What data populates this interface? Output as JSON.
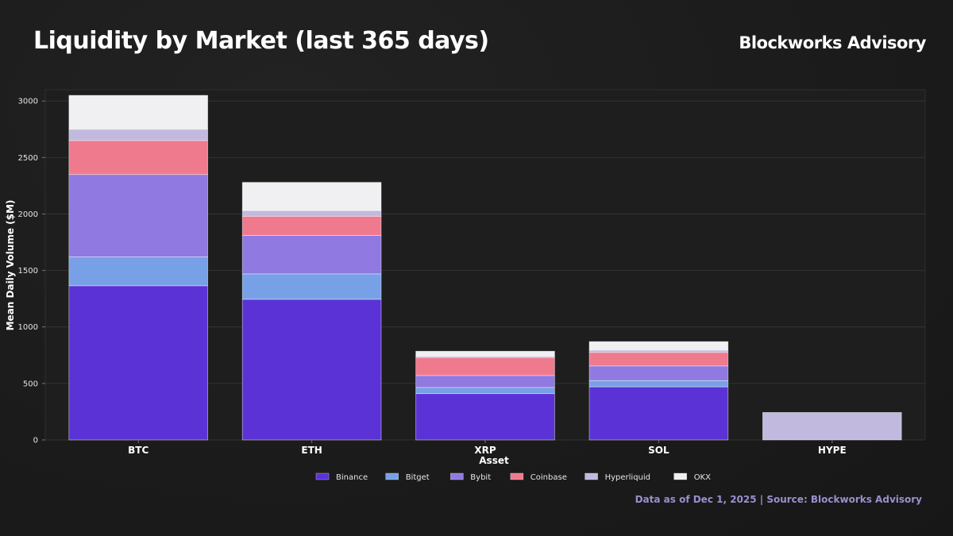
{
  "header": {
    "title": "Liquidity by Market (last 365 days)",
    "brand": "Blockworks Advisory"
  },
  "footer": {
    "note": "Data as of Dec 1, 2025 | Source: Blockworks Advisory"
  },
  "chart_data": {
    "type": "bar",
    "stacked": true,
    "title": "Liquidity by Market (last 365 days)",
    "xlabel": "Asset",
    "ylabel": "Mean Daily Volume ($M)",
    "ylim": [
      0,
      3100
    ],
    "yticks": [
      0,
      500,
      1000,
      1500,
      2000,
      2500,
      3000
    ],
    "grid": true,
    "legend_position": "bottom-center",
    "categories": [
      "BTC",
      "ETH",
      "XRP",
      "SOL",
      "HYPE"
    ],
    "series": [
      {
        "name": "Binance",
        "color": "#5a32d6",
        "values": [
          1365,
          1245,
          410,
          470,
          0
        ]
      },
      {
        "name": "Bitget",
        "color": "#78a0e6",
        "values": [
          255,
          225,
          55,
          55,
          0
        ]
      },
      {
        "name": "Bybit",
        "color": "#9079e0",
        "values": [
          730,
          340,
          105,
          130,
          0
        ]
      },
      {
        "name": "Coinbase",
        "color": "#ef7a8e",
        "values": [
          300,
          170,
          160,
          120,
          0
        ]
      },
      {
        "name": "Hyperliquid",
        "color": "#c2b9df",
        "values": [
          100,
          50,
          10,
          20,
          243
        ]
      },
      {
        "name": "OKX",
        "color": "#f0f0f2",
        "values": [
          300,
          250,
          45,
          75,
          0
        ]
      }
    ]
  }
}
